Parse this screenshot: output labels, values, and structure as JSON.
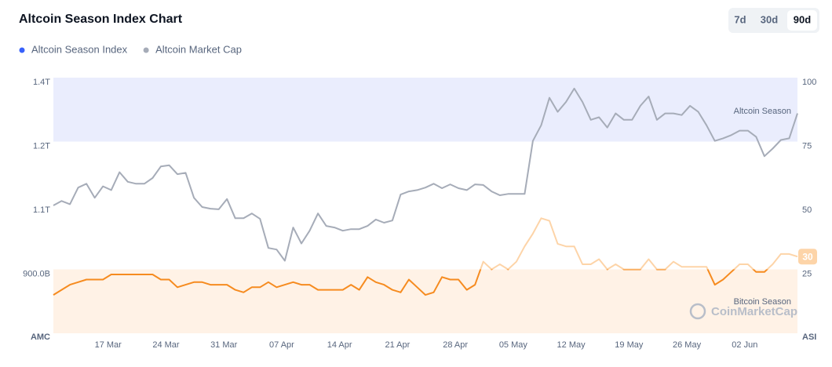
{
  "chart_data": {
    "type": "line",
    "title": "Altcoin Season Index Chart",
    "range_buttons": [
      "7d",
      "30d",
      "90d"
    ],
    "active_range_index": 2,
    "watermark": "CoinMarketCap",
    "y_axis_label": "AMC",
    "y2_axis_label": "ASI",
    "categories": [
      null,
      null,
      null,
      null,
      null,
      null,
      null,
      "17 Mar",
      null,
      null,
      null,
      null,
      null,
      null,
      "24 Mar",
      null,
      null,
      null,
      null,
      null,
      null,
      "31 Mar",
      null,
      null,
      null,
      null,
      null,
      null,
      "07 Apr",
      null,
      null,
      null,
      null,
      null,
      null,
      "14 Apr",
      null,
      null,
      null,
      null,
      null,
      null,
      "21 Apr",
      null,
      null,
      null,
      null,
      null,
      null,
      "28 Apr",
      null,
      null,
      null,
      null,
      null,
      null,
      "05 May",
      null,
      null,
      null,
      null,
      null,
      null,
      "12 May",
      null,
      null,
      null,
      null,
      null,
      null,
      "19 May",
      null,
      null,
      null,
      null,
      null,
      null,
      "26 May",
      null,
      null,
      null,
      null,
      null,
      null,
      "02 Jun",
      null,
      null,
      null,
      null,
      null,
      null
    ],
    "series": [
      {
        "name": "Altcoin Season Index",
        "color": "#3861fb",
        "axis": "y2",
        "line_color_low": "#f68b1f",
        "line_color_high": "#fdd4a8",
        "values": [
          15,
          17,
          19,
          20,
          21,
          21,
          21,
          23,
          23,
          23,
          23,
          23,
          23,
          21,
          21,
          18,
          19,
          20,
          20,
          19,
          19,
          19,
          17,
          16,
          18,
          18,
          20,
          18,
          19,
          20,
          19,
          19,
          17,
          17,
          17,
          17,
          19,
          17,
          22,
          20,
          19,
          17,
          16,
          21,
          18,
          15,
          16,
          22,
          21,
          21,
          17,
          19,
          28,
          25,
          27,
          25,
          28,
          34,
          39,
          45,
          44,
          35,
          34,
          34,
          27,
          27,
          29,
          25,
          27,
          25,
          25,
          25,
          29,
          25,
          25,
          28,
          26,
          26,
          26,
          26,
          19,
          21,
          24,
          27,
          27,
          24,
          24,
          27,
          31,
          31,
          30
        ]
      },
      {
        "name": "Altcoin Market Cap",
        "color": "#a6acb8",
        "axis": "y",
        "values": [
          1100000000000.0,
          1107000000000.0,
          1102000000000.0,
          1128000000000.0,
          1134000000000.0,
          1112000000000.0,
          1130000000000.0,
          1124000000000.0,
          1152000000000.0,
          1137000000000.0,
          1134000000000.0,
          1134000000000.0,
          1143000000000.0,
          1161000000000.0,
          1163000000000.0,
          1149000000000.0,
          1151000000000.0,
          1112000000000.0,
          1095000000000.0,
          1090000000000.0,
          1088000000000.0,
          1110000000000.0,
          1060000000000.0,
          1060000000000.0,
          1075000000000.0,
          1058000000000.0,
          967000000000.0,
          962000000000.0,
          927000000000.0,
          1031000000000.0,
          981000000000.0,
          1021000000000.0,
          1075000000000.0,
          1036000000000.0,
          1031000000000.0,
          1021000000000.0,
          1026000000000.0,
          1026000000000.0,
          1036000000000.0,
          1056000000000.0,
          1046000000000.0,
          1053000000000.0,
          1117000000000.0,
          1122000000000.0,
          1124000000000.0,
          1128000000000.0,
          1134000000000.0,
          1127000000000.0,
          1133000000000.0,
          1127000000000.0,
          1124000000000.0,
          1133000000000.0,
          1132000000000.0,
          1122000000000.0,
          1116000000000.0,
          1118000000000.0,
          1118000000000.0,
          1118000000000.0,
          1202000000000.0,
          1251000000000.0,
          1337000000000.0,
          1293000000000.0,
          1324000000000.0,
          1366000000000.0,
          1324000000000.0,
          1268000000000.0,
          1276000000000.0,
          1244000000000.0,
          1288000000000.0,
          1268000000000.0,
          1268000000000.0,
          1312000000000.0,
          1341000000000.0,
          1268000000000.0,
          1288000000000.0,
          1288000000000.0,
          1283000000000.0,
          1312000000000.0,
          1293000000000.0,
          1251000000000.0,
          1202000000000.0,
          1210000000000.0,
          1220000000000.0,
          1234000000000.0,
          1234000000000.0,
          1215000000000.0,
          1177000000000.0,
          1189000000000.0,
          1205000000000.0,
          1210000000000.0,
          1288000000000.0
        ]
      }
    ],
    "bands": [
      {
        "label": "Altcoin Season",
        "range": [
          75,
          100
        ],
        "color": "#eaedfd"
      },
      {
        "label": "Bitcoin Season",
        "range": [
          0,
          25
        ],
        "color": "#fff2e6"
      }
    ],
    "ylim": [
      700000000000.0,
      1400000000000.0
    ],
    "yticks": [
      {
        "value": 900000000000.0,
        "label": "900.0B"
      },
      {
        "value": 1100000000000.0,
        "label": "1.1T"
      },
      {
        "value": 1200000000000.0,
        "label": "1.2T"
      },
      {
        "value": 1400000000000.0,
        "label": "1.4T"
      }
    ],
    "y2lim": [
      0,
      100
    ],
    "y2ticks": [
      25,
      50,
      75,
      100
    ],
    "grid": false
  }
}
